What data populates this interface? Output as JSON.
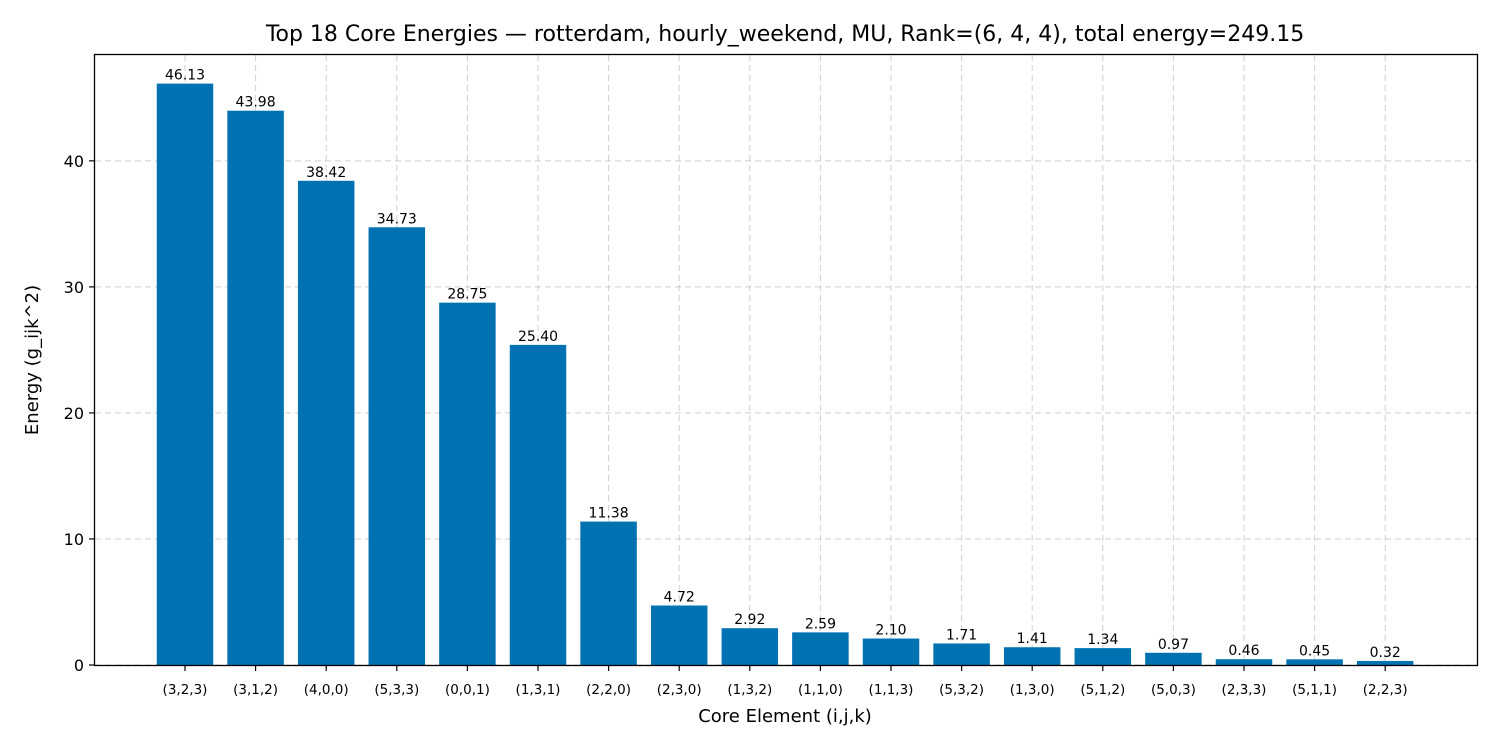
{
  "chart_data": {
    "type": "bar",
    "title": "Top 18 Core Energies — rotterdam, hourly_weekend, MU, Rank=(6, 4, 4), total energy=249.15",
    "xlabel": "Core Element (i,j,k)",
    "ylabel": "Energy (g_ijk^2)",
    "categories": [
      "(3,2,3)",
      "(3,1,2)",
      "(4,0,0)",
      "(5,3,3)",
      "(0,0,1)",
      "(1,3,1)",
      "(2,2,0)",
      "(2,3,0)",
      "(1,3,2)",
      "(1,1,0)",
      "(1,1,3)",
      "(5,3,2)",
      "(1,3,0)",
      "(5,1,2)",
      "(5,0,3)",
      "(2,3,3)",
      "(5,1,1)",
      "(2,2,3)"
    ],
    "values": [
      46.13,
      43.98,
      38.42,
      34.73,
      28.75,
      25.4,
      11.38,
      4.72,
      2.92,
      2.59,
      2.1,
      1.71,
      1.41,
      1.34,
      0.97,
      0.46,
      0.45,
      0.32
    ],
    "value_labels": [
      "46.13",
      "43.98",
      "38.42",
      "34.73",
      "28.75",
      "25.40",
      "11.38",
      "4.72",
      "2.92",
      "2.59",
      "2.10",
      "1.71",
      "1.41",
      "1.34",
      "0.97",
      "0.46",
      "0.45",
      "0.32"
    ],
    "yticks": [
      0,
      10,
      20,
      30,
      40
    ],
    "ylim": [
      0,
      48.4
    ],
    "grid": true,
    "bar_color": "#0072b2"
  }
}
